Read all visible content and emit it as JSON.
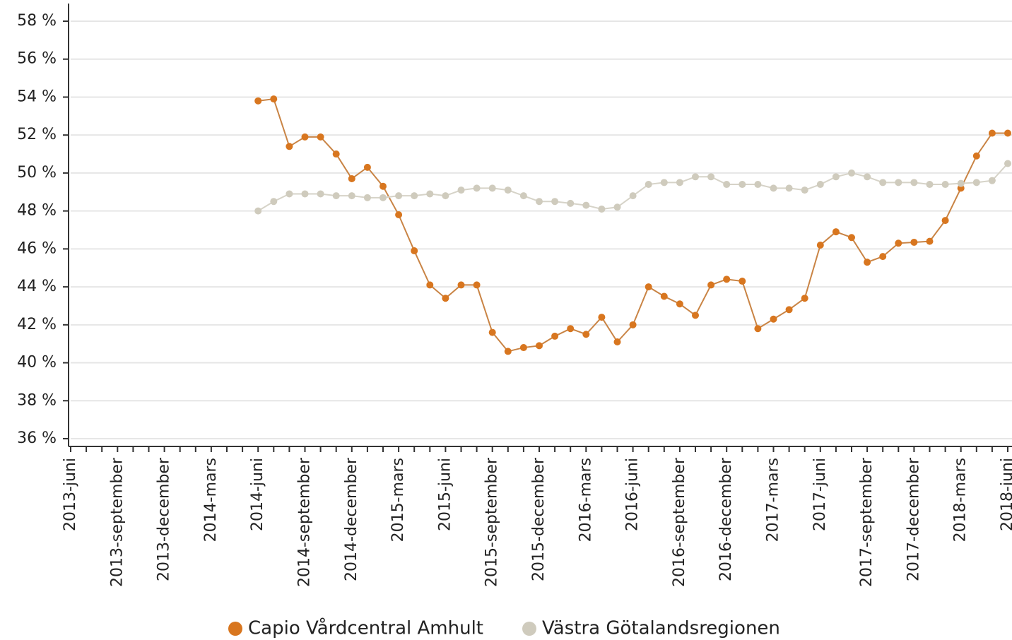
{
  "chart_data": {
    "type": "line",
    "categories": [
      "2013-juni",
      null,
      null,
      "2013-september",
      null,
      null,
      "2013-december",
      null,
      null,
      "2014-mars",
      null,
      null,
      "2014-juni",
      null,
      null,
      "2014-september",
      null,
      null,
      "2014-december",
      null,
      null,
      "2015-mars",
      null,
      null,
      "2015-juni",
      null,
      null,
      "2015-september",
      null,
      null,
      "2015-december",
      null,
      null,
      "2016-mars",
      null,
      null,
      "2016-juni",
      null,
      null,
      "2016-september",
      null,
      null,
      "2016-december",
      null,
      null,
      "2017-mars",
      null,
      null,
      "2017-juni",
      null,
      null,
      "2017-september",
      null,
      null,
      "2017-december",
      null,
      null,
      "2018-mars",
      null,
      null,
      "2018-juni"
    ],
    "series": [
      {
        "name": "Capio Vårdcentral Amhult",
        "color": "#d8761f",
        "line_color": "#c98445",
        "values": [
          null,
          null,
          null,
          null,
          null,
          null,
          null,
          null,
          null,
          null,
          null,
          null,
          53.8,
          53.9,
          51.4,
          51.9,
          51.9,
          51.0,
          49.7,
          50.3,
          49.3,
          47.8,
          45.9,
          44.1,
          43.4,
          44.1,
          44.1,
          41.6,
          40.6,
          40.8,
          40.9,
          41.4,
          41.8,
          41.5,
          42.4,
          41.1,
          42.0,
          44.0,
          43.5,
          43.1,
          42.5,
          44.1,
          44.4,
          44.3,
          41.8,
          42.3,
          42.8,
          43.4,
          46.2,
          46.9,
          46.6,
          45.3,
          45.6,
          46.3,
          46.35,
          46.4,
          47.5,
          49.2,
          50.9,
          52.1,
          52.1
        ]
      },
      {
        "name": "Västra Götalandsregionen",
        "color": "#cfcbbd",
        "line_color": "#d6d3c8",
        "values": [
          null,
          null,
          null,
          null,
          null,
          null,
          null,
          null,
          null,
          null,
          null,
          null,
          48.0,
          48.5,
          48.9,
          48.9,
          48.9,
          48.8,
          48.8,
          48.7,
          48.7,
          48.8,
          48.8,
          48.9,
          48.8,
          49.1,
          49.2,
          49.2,
          49.1,
          48.8,
          48.5,
          48.5,
          48.4,
          48.3,
          48.1,
          48.2,
          48.8,
          49.4,
          49.5,
          49.5,
          49.8,
          49.8,
          49.4,
          49.4,
          49.4,
          49.2,
          49.2,
          49.1,
          49.4,
          49.8,
          50.0,
          49.8,
          49.5,
          49.5,
          49.5,
          49.4,
          49.4,
          49.45,
          49.5,
          49.6,
          50.5
        ]
      }
    ],
    "ylim": [
      36,
      58
    ],
    "yticks": [
      {
        "value": 36,
        "label": "36 %"
      },
      {
        "value": 38,
        "label": "38 %"
      },
      {
        "value": 40,
        "label": "40 %"
      },
      {
        "value": 42,
        "label": "42 %"
      },
      {
        "value": 44,
        "label": "44 %"
      },
      {
        "value": 46,
        "label": "46 %"
      },
      {
        "value": 48,
        "label": "48 %"
      },
      {
        "value": 50,
        "label": "50 %"
      },
      {
        "value": 52,
        "label": "52 %"
      },
      {
        "value": 54,
        "label": "54 %"
      },
      {
        "value": 56,
        "label": "56 %"
      },
      {
        "value": 58,
        "label": "58 %"
      }
    ],
    "grid": true,
    "legend": "bottom"
  }
}
